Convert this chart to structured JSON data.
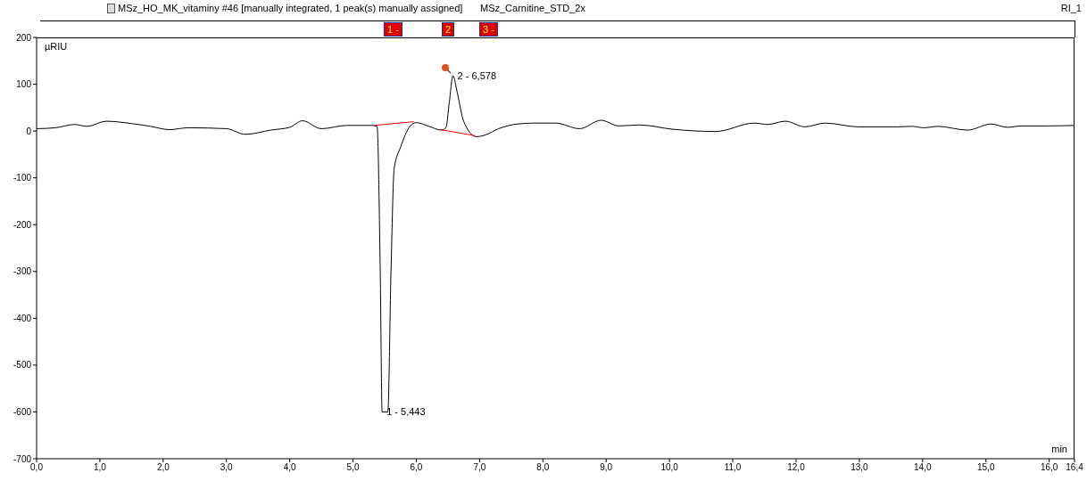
{
  "chart_data": {
    "type": "line",
    "title": "MSz_HO_MK_vitaminy #46 [manually integrated, 1 peak(s) manually assigned]",
    "subtitle": "MSz_Carnitine_STD_2x",
    "xlabel": "min",
    "ylabel": "µRIU",
    "annotations": [
      "RI_1",
      "1 -",
      "2",
      "3 -",
      {
        "text": "1 - 5,443",
        "x": 5.46,
        "y": -600
      },
      {
        "text": "2 - 6,578",
        "x": 6.58,
        "y": 118
      }
    ],
    "xlim": [
      0,
      16.4
    ],
    "ylim": [
      -700,
      200
    ],
    "xticks": [
      {
        "value": 0,
        "label": "0,0"
      },
      {
        "value": 1,
        "label": "1,0"
      },
      {
        "value": 2,
        "label": "2,0"
      },
      {
        "value": 3,
        "label": "3,0"
      },
      {
        "value": 4,
        "label": "4,0"
      },
      {
        "value": 5,
        "label": "5,0"
      },
      {
        "value": 6,
        "label": "6,0"
      },
      {
        "value": 7,
        "label": "7,0"
      },
      {
        "value": 8,
        "label": "8,0"
      },
      {
        "value": 9,
        "label": "9,0"
      },
      {
        "value": 10,
        "label": "10,0"
      },
      {
        "value": 11,
        "label": "11,0"
      },
      {
        "value": 12,
        "label": "12,0"
      },
      {
        "value": 13,
        "label": "13,0"
      },
      {
        "value": 14,
        "label": "14,0"
      },
      {
        "value": 15,
        "label": "15,0"
      },
      {
        "value": 16,
        "label": "16,0"
      },
      {
        "value": 16.4,
        "label": "16,4"
      }
    ],
    "yticks": [
      -700,
      -600,
      -500,
      -400,
      -300,
      -200,
      -100,
      0,
      100,
      200
    ],
    "marker": "none",
    "line_style": "solid",
    "series": [
      {
        "color": "#000000",
        "x": [
          0,
          0.3,
          0.6,
          0.8,
          1.1,
          1.5,
          1.8,
          2.1,
          2.4,
          3.0,
          3.3,
          3.7,
          4.0,
          4.2,
          4.5,
          4.9,
          5.3,
          5.38,
          5.43,
          5.46,
          5.55,
          5.6,
          5.65,
          5.75,
          5.9,
          6.0,
          6.2,
          6.4,
          6.47,
          6.52,
          6.58,
          6.65,
          6.75,
          6.95,
          7.1,
          7.3,
          7.6,
          7.86,
          8.2,
          8.58,
          8.92,
          9.2,
          9.53,
          10.04,
          10.73,
          11.34,
          11.55,
          11.83,
          12.14,
          12.46,
          12.98,
          13.6,
          13.84,
          14.02,
          14.24,
          14.71,
          15.08,
          15.34,
          15.57,
          16.0,
          16.4
        ],
        "values": [
          5,
          7,
          14,
          10,
          21,
          16,
          10,
          3,
          7,
          5,
          -7,
          2,
          8,
          22,
          5,
          12,
          12,
          10,
          -300,
          -600,
          -600,
          -300,
          -80,
          -35,
          10,
          18,
          10,
          2,
          8,
          60,
          118,
          80,
          20,
          -12,
          -8,
          5,
          15,
          17,
          17,
          5,
          23,
          11,
          13,
          4,
          -1,
          17,
          14,
          21,
          9,
          17,
          9,
          9,
          10,
          7,
          10,
          2,
          15,
          8,
          11,
          11,
          12
        ]
      },
      {
        "color": "#ff0000",
        "x": [
          5.33,
          5.96
        ],
        "values": [
          12,
          20
        ]
      },
      {
        "color": "#ff0000",
        "x": [
          6.38,
          6.93
        ],
        "values": [
          3,
          -10
        ]
      }
    ]
  }
}
